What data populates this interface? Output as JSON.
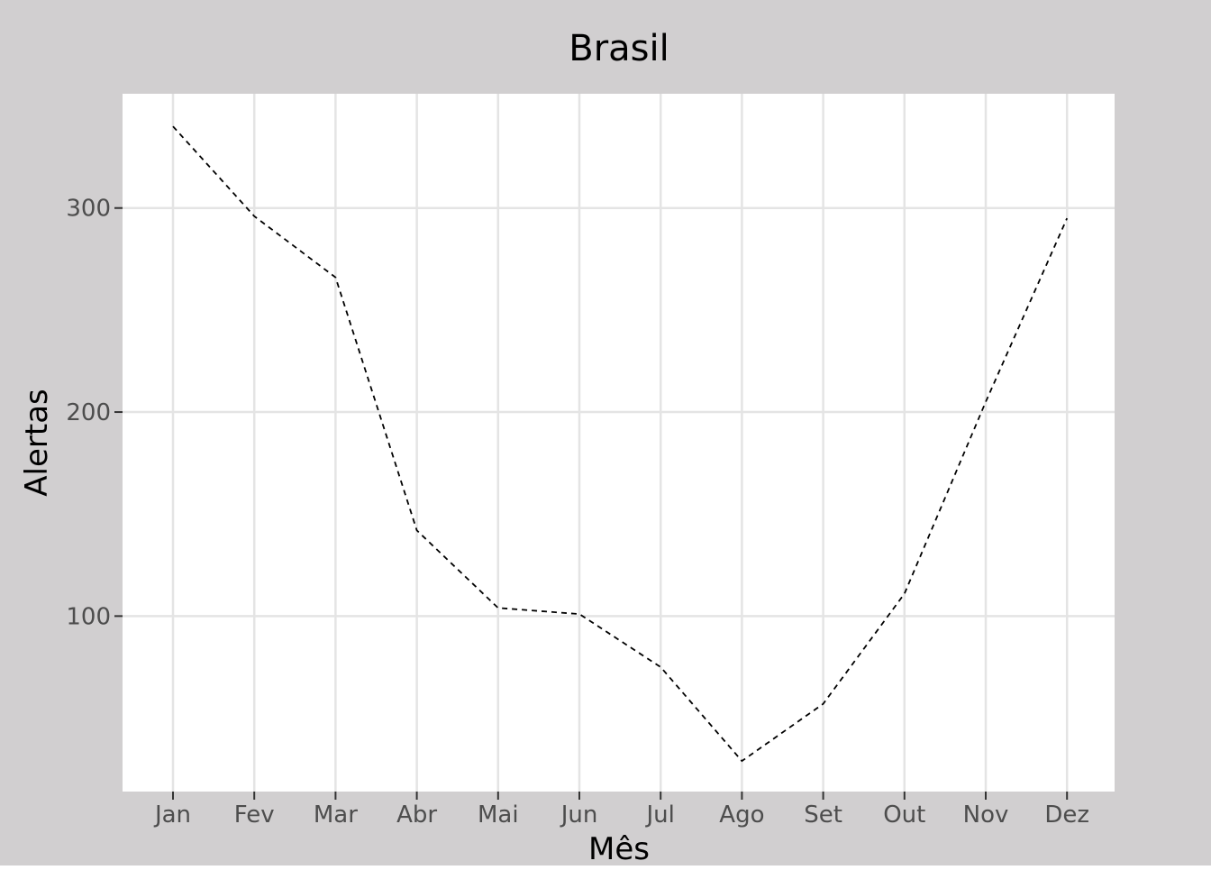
{
  "chart_data": {
    "type": "line",
    "title": "Brasil",
    "xlabel": "Mês",
    "ylabel": "Alertas",
    "categories": [
      "Jan",
      "Fev",
      "Mar",
      "Abr",
      "Mai",
      "Jun",
      "Jul",
      "Ago",
      "Set",
      "Out",
      "Nov",
      "Dez"
    ],
    "series": [
      {
        "values": [
          340,
          296,
          266,
          142,
          104,
          101,
          75,
          29,
          57,
          111,
          205,
          295
        ],
        "line_style": "dashed",
        "color": "#000000"
      }
    ],
    "y_ticks": [
      100,
      200,
      300
    ],
    "y_tick_labels": [
      "100",
      "200",
      "300"
    ],
    "ylim": [
      14,
      356
    ],
    "grid": true,
    "legend": "none",
    "colors": {
      "outer_background": "#d1cfd0",
      "panel_background": "#ffffff",
      "grid": "#e4e4e4",
      "tick_text": "#4d4d4d"
    }
  }
}
